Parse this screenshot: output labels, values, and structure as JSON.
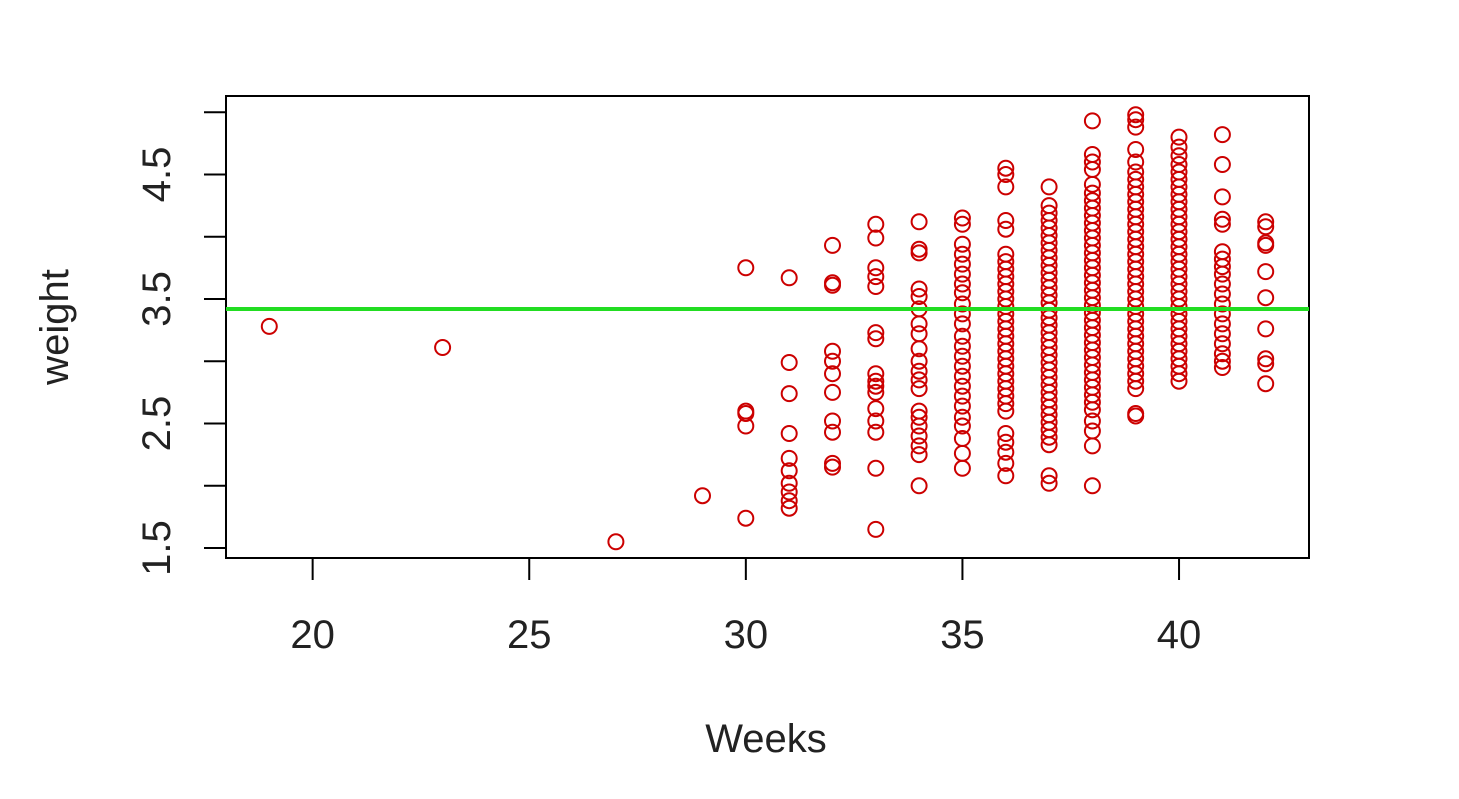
{
  "chart_data": {
    "type": "scatter",
    "title": "",
    "xlabel": "Weeks",
    "ylabel": "weight",
    "xlim": [
      18,
      43
    ],
    "ylim": [
      1.42,
      5.13
    ],
    "xticks": [
      20,
      25,
      30,
      35,
      40
    ],
    "xtick_labels": [
      "20",
      "25",
      "30",
      "35",
      "40"
    ],
    "yticks": [
      1.5,
      2.0,
      2.5,
      3.0,
      3.5,
      4.0,
      4.5,
      5.0
    ],
    "ytick_labels": [
      "1.5",
      "",
      "2.5",
      "",
      "3.5",
      "",
      "4.5",
      ""
    ],
    "grid": false,
    "series": [
      {
        "marker": "open-circle",
        "color": "#cc0000",
        "points": [
          [
            19,
            3.28
          ],
          [
            23,
            3.11
          ],
          [
            27,
            1.55
          ],
          [
            29,
            1.92
          ],
          [
            30,
            3.75
          ],
          [
            30,
            2.6
          ],
          [
            30,
            2.58
          ],
          [
            30,
            2.48
          ],
          [
            30,
            1.74
          ],
          [
            31,
            3.67
          ],
          [
            31,
            2.99
          ],
          [
            31,
            2.74
          ],
          [
            31,
            2.42
          ],
          [
            31,
            2.22
          ],
          [
            31,
            2.12
          ],
          [
            31,
            2.02
          ],
          [
            31,
            1.95
          ],
          [
            31,
            1.88
          ],
          [
            31,
            1.82
          ],
          [
            32,
            3.93
          ],
          [
            32,
            3.63
          ],
          [
            32,
            3.61
          ],
          [
            32,
            3.08
          ],
          [
            32,
            3.0
          ],
          [
            32,
            2.9
          ],
          [
            32,
            2.75
          ],
          [
            32,
            2.52
          ],
          [
            32,
            2.43
          ],
          [
            32,
            2.18
          ],
          [
            32,
            2.15
          ],
          [
            33,
            4.1
          ],
          [
            33,
            3.99
          ],
          [
            33,
            3.75
          ],
          [
            33,
            3.68
          ],
          [
            33,
            3.6
          ],
          [
            33,
            3.23
          ],
          [
            33,
            3.18
          ],
          [
            33,
            2.9
          ],
          [
            33,
            2.84
          ],
          [
            33,
            2.8
          ],
          [
            33,
            2.75
          ],
          [
            33,
            2.62
          ],
          [
            33,
            2.52
          ],
          [
            33,
            2.43
          ],
          [
            33,
            2.14
          ],
          [
            33,
            1.65
          ],
          [
            34,
            4.12
          ],
          [
            34,
            3.9
          ],
          [
            34,
            3.87
          ],
          [
            34,
            3.58
          ],
          [
            34,
            3.52
          ],
          [
            34,
            3.42
          ],
          [
            34,
            3.3
          ],
          [
            34,
            3.22
          ],
          [
            34,
            3.1
          ],
          [
            34,
            3.0
          ],
          [
            34,
            2.92
          ],
          [
            34,
            2.85
          ],
          [
            34,
            2.78
          ],
          [
            34,
            2.6
          ],
          [
            34,
            2.55
          ],
          [
            34,
            2.48
          ],
          [
            34,
            2.4
          ],
          [
            34,
            2.32
          ],
          [
            34,
            2.25
          ],
          [
            34,
            2.0
          ],
          [
            35,
            4.15
          ],
          [
            35,
            4.1
          ],
          [
            35,
            3.94
          ],
          [
            35,
            3.86
          ],
          [
            35,
            3.78
          ],
          [
            35,
            3.7
          ],
          [
            35,
            3.62
          ],
          [
            35,
            3.55
          ],
          [
            35,
            3.46
          ],
          [
            35,
            3.38
          ],
          [
            35,
            3.3
          ],
          [
            35,
            3.2
          ],
          [
            35,
            3.12
          ],
          [
            35,
            3.04
          ],
          [
            35,
            2.96
          ],
          [
            35,
            2.88
          ],
          [
            35,
            2.8
          ],
          [
            35,
            2.72
          ],
          [
            35,
            2.64
          ],
          [
            35,
            2.55
          ],
          [
            35,
            2.48
          ],
          [
            35,
            2.38
          ],
          [
            35,
            2.26
          ],
          [
            35,
            2.14
          ],
          [
            36,
            4.55
          ],
          [
            36,
            4.5
          ],
          [
            36,
            4.4
          ],
          [
            36,
            4.13
          ],
          [
            36,
            4.06
          ],
          [
            36,
            3.86
          ],
          [
            36,
            3.8
          ],
          [
            36,
            3.74
          ],
          [
            36,
            3.68
          ],
          [
            36,
            3.62
          ],
          [
            36,
            3.56
          ],
          [
            36,
            3.5
          ],
          [
            36,
            3.44
          ],
          [
            36,
            3.38
          ],
          [
            36,
            3.32
          ],
          [
            36,
            3.26
          ],
          [
            36,
            3.2
          ],
          [
            36,
            3.14
          ],
          [
            36,
            3.08
          ],
          [
            36,
            3.02
          ],
          [
            36,
            2.96
          ],
          [
            36,
            2.9
          ],
          [
            36,
            2.84
          ],
          [
            36,
            2.78
          ],
          [
            36,
            2.72
          ],
          [
            36,
            2.66
          ],
          [
            36,
            2.6
          ],
          [
            36,
            2.42
          ],
          [
            36,
            2.35
          ],
          [
            36,
            2.27
          ],
          [
            36,
            2.18
          ],
          [
            36,
            2.08
          ],
          [
            37,
            4.4
          ],
          [
            37,
            4.25
          ],
          [
            37,
            4.19
          ],
          [
            37,
            4.13
          ],
          [
            37,
            4.07
          ],
          [
            37,
            4.01
          ],
          [
            37,
            3.95
          ],
          [
            37,
            3.89
          ],
          [
            37,
            3.83
          ],
          [
            37,
            3.77
          ],
          [
            37,
            3.71
          ],
          [
            37,
            3.65
          ],
          [
            37,
            3.59
          ],
          [
            37,
            3.53
          ],
          [
            37,
            3.47
          ],
          [
            37,
            3.41
          ],
          [
            37,
            3.35
          ],
          [
            37,
            3.29
          ],
          [
            37,
            3.23
          ],
          [
            37,
            3.17
          ],
          [
            37,
            3.11
          ],
          [
            37,
            3.05
          ],
          [
            37,
            2.99
          ],
          [
            37,
            2.93
          ],
          [
            37,
            2.87
          ],
          [
            37,
            2.81
          ],
          [
            37,
            2.75
          ],
          [
            37,
            2.69
          ],
          [
            37,
            2.63
          ],
          [
            37,
            2.57
          ],
          [
            37,
            2.51
          ],
          [
            37,
            2.45
          ],
          [
            37,
            2.39
          ],
          [
            37,
            2.33
          ],
          [
            37,
            2.08
          ],
          [
            37,
            2.02
          ],
          [
            38,
            4.93
          ],
          [
            38,
            4.66
          ],
          [
            38,
            4.6
          ],
          [
            38,
            4.54
          ],
          [
            38,
            4.42
          ],
          [
            38,
            4.35
          ],
          [
            38,
            4.29
          ],
          [
            38,
            4.23
          ],
          [
            38,
            4.17
          ],
          [
            38,
            4.11
          ],
          [
            38,
            4.05
          ],
          [
            38,
            3.99
          ],
          [
            38,
            3.93
          ],
          [
            38,
            3.87
          ],
          [
            38,
            3.81
          ],
          [
            38,
            3.75
          ],
          [
            38,
            3.69
          ],
          [
            38,
            3.63
          ],
          [
            38,
            3.57
          ],
          [
            38,
            3.51
          ],
          [
            38,
            3.45
          ],
          [
            38,
            3.39
          ],
          [
            38,
            3.33
          ],
          [
            38,
            3.27
          ],
          [
            38,
            3.21
          ],
          [
            38,
            3.15
          ],
          [
            38,
            3.09
          ],
          [
            38,
            3.03
          ],
          [
            38,
            2.97
          ],
          [
            38,
            2.91
          ],
          [
            38,
            2.85
          ],
          [
            38,
            2.79
          ],
          [
            38,
            2.73
          ],
          [
            38,
            2.67
          ],
          [
            38,
            2.61
          ],
          [
            38,
            2.52
          ],
          [
            38,
            2.44
          ],
          [
            38,
            2.32
          ],
          [
            38,
            2.0
          ],
          [
            39,
            4.98
          ],
          [
            39,
            4.94
          ],
          [
            39,
            4.88
          ],
          [
            39,
            4.7
          ],
          [
            39,
            4.6
          ],
          [
            39,
            4.52
          ],
          [
            39,
            4.46
          ],
          [
            39,
            4.4
          ],
          [
            39,
            4.34
          ],
          [
            39,
            4.28
          ],
          [
            39,
            4.22
          ],
          [
            39,
            4.16
          ],
          [
            39,
            4.1
          ],
          [
            39,
            4.04
          ],
          [
            39,
            3.98
          ],
          [
            39,
            3.92
          ],
          [
            39,
            3.86
          ],
          [
            39,
            3.8
          ],
          [
            39,
            3.74
          ],
          [
            39,
            3.68
          ],
          [
            39,
            3.62
          ],
          [
            39,
            3.56
          ],
          [
            39,
            3.5
          ],
          [
            39,
            3.44
          ],
          [
            39,
            3.38
          ],
          [
            39,
            3.32
          ],
          [
            39,
            3.26
          ],
          [
            39,
            3.2
          ],
          [
            39,
            3.14
          ],
          [
            39,
            3.08
          ],
          [
            39,
            3.02
          ],
          [
            39,
            2.96
          ],
          [
            39,
            2.9
          ],
          [
            39,
            2.84
          ],
          [
            39,
            2.78
          ],
          [
            39,
            2.58
          ],
          [
            39,
            2.56
          ],
          [
            40,
            4.8
          ],
          [
            40,
            4.72
          ],
          [
            40,
            4.65
          ],
          [
            40,
            4.58
          ],
          [
            40,
            4.52
          ],
          [
            40,
            4.46
          ],
          [
            40,
            4.4
          ],
          [
            40,
            4.34
          ],
          [
            40,
            4.28
          ],
          [
            40,
            4.22
          ],
          [
            40,
            4.16
          ],
          [
            40,
            4.1
          ],
          [
            40,
            4.04
          ],
          [
            40,
            3.98
          ],
          [
            40,
            3.92
          ],
          [
            40,
            3.86
          ],
          [
            40,
            3.8
          ],
          [
            40,
            3.74
          ],
          [
            40,
            3.68
          ],
          [
            40,
            3.62
          ],
          [
            40,
            3.56
          ],
          [
            40,
            3.5
          ],
          [
            40,
            3.44
          ],
          [
            40,
            3.38
          ],
          [
            40,
            3.32
          ],
          [
            40,
            3.26
          ],
          [
            40,
            3.2
          ],
          [
            40,
            3.14
          ],
          [
            40,
            3.08
          ],
          [
            40,
            3.02
          ],
          [
            40,
            2.96
          ],
          [
            40,
            2.9
          ],
          [
            40,
            2.84
          ],
          [
            41,
            4.82
          ],
          [
            41,
            4.58
          ],
          [
            41,
            4.32
          ],
          [
            41,
            4.14
          ],
          [
            41,
            4.1
          ],
          [
            41,
            3.88
          ],
          [
            41,
            3.82
          ],
          [
            41,
            3.76
          ],
          [
            41,
            3.7
          ],
          [
            41,
            3.62
          ],
          [
            41,
            3.54
          ],
          [
            41,
            3.46
          ],
          [
            41,
            3.38
          ],
          [
            41,
            3.3
          ],
          [
            41,
            3.22
          ],
          [
            41,
            3.14
          ],
          [
            41,
            3.06
          ],
          [
            41,
            3.0
          ],
          [
            41,
            2.95
          ],
          [
            42,
            4.12
          ],
          [
            42,
            4.08
          ],
          [
            42,
            3.95
          ],
          [
            42,
            3.93
          ],
          [
            42,
            3.72
          ],
          [
            42,
            3.51
          ],
          [
            42,
            3.26
          ],
          [
            42,
            3.02
          ],
          [
            42,
            2.98
          ],
          [
            42,
            2.82
          ]
        ]
      }
    ],
    "reference_line": {
      "orientation": "horizontal",
      "y": 3.42,
      "color": "#22dd22"
    }
  }
}
